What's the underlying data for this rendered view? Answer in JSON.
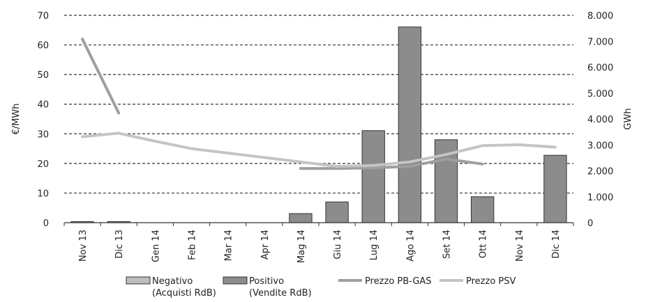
{
  "chart_data": {
    "type": "bar",
    "categories": [
      "Nov 13",
      "Dic 13",
      "Gen 14",
      "Feb 14",
      "Mar 14",
      "Apr 14",
      "Mag 14",
      "Giu 14",
      "Lug 14",
      "Ago 14",
      "Set 14",
      "Ott 14",
      "Nov 14",
      "Dic 14"
    ],
    "ylabel": "€/MWh",
    "y2label": "GWh",
    "ylim": [
      0,
      70
    ],
    "y2lim": [
      0,
      8000
    ],
    "yticks": [
      "0",
      "10",
      "20",
      "30",
      "40",
      "50",
      "60",
      "70"
    ],
    "y2ticks": [
      "0",
      "1.000",
      "2.000",
      "3.000",
      "4.000",
      "5.000",
      "6.000",
      "7.000",
      "8.000"
    ],
    "grid": "horizontal dashed",
    "legend_position": "bottom",
    "series": [
      {
        "name": "Negativo",
        "name_sub": "(Acquisti RdB)",
        "kind": "bar",
        "axis": "y2",
        "color": "#bdbdbd",
        "values": [
          0,
          0,
          0,
          0,
          0,
          0,
          0,
          0,
          0,
          0,
          0,
          0,
          0,
          0
        ]
      },
      {
        "name": "Positivo",
        "name_sub": "(Vendite RdB)",
        "kind": "bar",
        "axis": "y2",
        "color": "#8c8c8c",
        "values": [
          30,
          30,
          0,
          0,
          0,
          0,
          350,
          800,
          3550,
          7550,
          3200,
          1000,
          0,
          2600
        ]
      },
      {
        "name": "Prezzo PB-GAS",
        "kind": "line",
        "axis": "y",
        "color": "#9e9e9e",
        "values": [
          62,
          37,
          null,
          null,
          null,
          null,
          18.3,
          18.3,
          18.5,
          19.0,
          21.5,
          19.8,
          null,
          null
        ],
        "segments": [
          [
            0,
            1
          ],
          [
            6,
            11
          ]
        ]
      },
      {
        "name": "Prezzo PSV",
        "kind": "line",
        "axis": "y",
        "color": "#c4c4c4",
        "values": [
          29,
          30.2,
          27.5,
          25,
          23.5,
          22,
          20.5,
          19,
          19.3,
          20.5,
          23,
          26,
          26.3,
          25.5
        ]
      }
    ]
  }
}
